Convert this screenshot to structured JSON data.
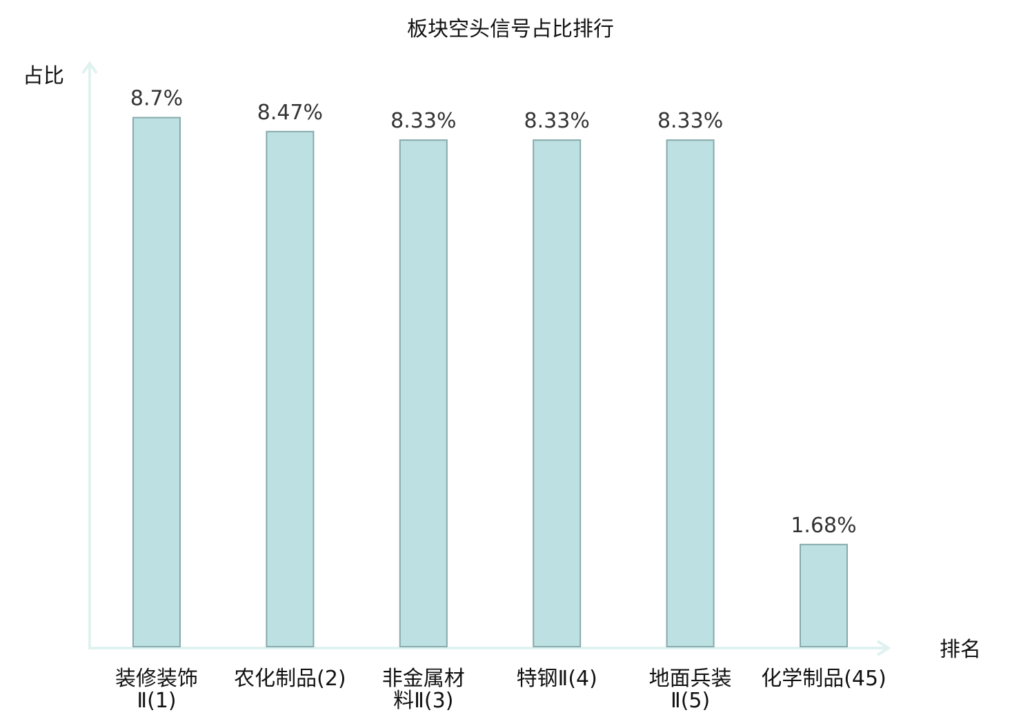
{
  "chart_data": {
    "type": "bar",
    "title": "板块空头信号占比排行",
    "ylabel": "占比",
    "xlabel": "排名",
    "categories": [
      [
        "装修装饰",
        "Ⅱ(1)"
      ],
      [
        "农化制品(2)"
      ],
      [
        "非金属材",
        "料Ⅱ(3)"
      ],
      [
        "特钢Ⅱ(4)"
      ],
      [
        "地面兵装",
        "Ⅱ(5)"
      ],
      [
        "化学制品(45)"
      ]
    ],
    "values": [
      8.7,
      8.47,
      8.33,
      8.33,
      8.33,
      1.68
    ],
    "value_labels": [
      "8.7%",
      "8.47%",
      "8.33%",
      "8.33%",
      "8.33%",
      "1.68%"
    ],
    "highlight_index": 5,
    "ylim": [
      0,
      9.5
    ],
    "grid": false,
    "legend": "none"
  },
  "colors": {
    "bar_fill": "#bde0e3",
    "bar_stroke": "#86a9ab",
    "axis": "#e0f2ef",
    "highlight_text": "#e8171b",
    "text": "#111111",
    "value_text": "#333333"
  }
}
